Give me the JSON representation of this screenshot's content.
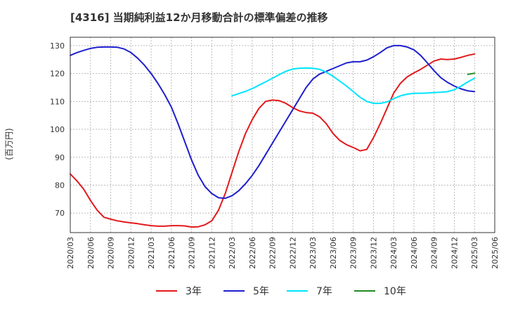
{
  "chart_data": {
    "type": "line",
    "title": "[4316]  当期純利益12か月移動合計の標準偏差の推移",
    "ylabel": "(百万円)",
    "xlabel": "",
    "ylim": [
      63,
      133
    ],
    "yticks": [
      70,
      80,
      90,
      100,
      110,
      120,
      130
    ],
    "xticks": [
      "2020/03",
      "2020/06",
      "2020/09",
      "2020/12",
      "2021/03",
      "2021/06",
      "2021/09",
      "2021/12",
      "2022/03",
      "2022/06",
      "2022/09",
      "2022/12",
      "2023/03",
      "2023/06",
      "2023/09",
      "2023/12",
      "2024/03",
      "2024/06",
      "2024/09",
      "2024/12",
      "2025/03",
      "2025/06"
    ],
    "grid": true,
    "legend_position": "bottom",
    "series": [
      {
        "name": "3年",
        "color": "#e31a1c",
        "x": [
          "2020/03",
          "2020/04",
          "2020/05",
          "2020/06",
          "2020/07",
          "2020/08",
          "2020/09",
          "2020/10",
          "2020/11",
          "2020/12",
          "2021/01",
          "2021/02",
          "2021/03",
          "2021/04",
          "2021/05",
          "2021/06",
          "2021/07",
          "2021/08",
          "2021/09",
          "2021/10",
          "2021/11",
          "2021/12",
          "2022/01",
          "2022/02",
          "2022/03",
          "2022/04",
          "2022/05",
          "2022/06",
          "2022/07",
          "2022/08",
          "2022/09",
          "2022/10",
          "2022/11",
          "2022/12",
          "2023/01",
          "2023/02",
          "2023/03",
          "2023/04",
          "2023/05",
          "2023/06",
          "2023/07",
          "2023/08",
          "2023/09",
          "2023/10",
          "2023/11",
          "2023/12",
          "2024/01",
          "2024/02",
          "2024/03",
          "2024/04",
          "2024/05",
          "2024/06",
          "2024/07",
          "2024/08",
          "2024/09",
          "2024/10",
          "2024/11",
          "2024/12",
          "2025/01",
          "2025/02",
          "2025/03"
        ],
        "values": [
          84.0,
          81.5,
          78.5,
          74.5,
          71.0,
          68.5,
          67.8,
          67.2,
          66.8,
          66.5,
          66.2,
          65.8,
          65.5,
          65.3,
          65.3,
          65.5,
          65.5,
          65.4,
          65.0,
          65.1,
          65.8,
          67.2,
          71.0,
          77.0,
          84.5,
          92.0,
          98.5,
          103.5,
          107.5,
          110.0,
          110.5,
          110.3,
          109.3,
          107.8,
          106.6,
          106.0,
          105.8,
          104.5,
          102.0,
          98.5,
          96.0,
          94.5,
          93.5,
          92.3,
          92.8,
          97.0,
          102.0,
          107.5,
          113.0,
          116.5,
          118.8,
          120.2,
          121.5,
          123.0,
          124.5,
          125.2,
          125.0,
          125.2,
          125.8,
          126.5,
          127.0
        ]
      },
      {
        "name": "5年",
        "color": "#1f1fcf",
        "x": [
          "2020/03",
          "2020/04",
          "2020/05",
          "2020/06",
          "2020/07",
          "2020/08",
          "2020/09",
          "2020/10",
          "2020/11",
          "2020/12",
          "2021/01",
          "2021/02",
          "2021/03",
          "2021/04",
          "2021/05",
          "2021/06",
          "2021/07",
          "2021/08",
          "2021/09",
          "2021/10",
          "2021/11",
          "2021/12",
          "2022/01",
          "2022/02",
          "2022/03",
          "2022/04",
          "2022/05",
          "2022/06",
          "2022/07",
          "2022/08",
          "2022/09",
          "2022/10",
          "2022/11",
          "2022/12",
          "2023/01",
          "2023/02",
          "2023/03",
          "2023/04",
          "2023/05",
          "2023/06",
          "2023/07",
          "2023/08",
          "2023/09",
          "2023/10",
          "2023/11",
          "2023/12",
          "2024/01",
          "2024/02",
          "2024/03",
          "2024/04",
          "2024/05",
          "2024/06",
          "2024/07",
          "2024/08",
          "2024/09",
          "2024/10",
          "2024/11",
          "2024/12",
          "2025/01",
          "2025/02",
          "2025/03"
        ],
        "values": [
          126.5,
          127.5,
          128.3,
          129.0,
          129.4,
          129.5,
          129.5,
          129.4,
          128.8,
          127.5,
          125.5,
          123.0,
          120.0,
          116.5,
          112.5,
          108.0,
          102.0,
          95.5,
          89.0,
          83.5,
          79.5,
          77.0,
          75.5,
          75.3,
          76.2,
          78.0,
          80.5,
          83.5,
          87.0,
          91.0,
          95.0,
          99.0,
          103.0,
          107.0,
          111.0,
          115.0,
          118.0,
          119.8,
          120.8,
          121.8,
          122.8,
          123.8,
          124.2,
          124.2,
          124.8,
          126.0,
          127.5,
          129.2,
          130.0,
          130.0,
          129.5,
          128.5,
          126.5,
          123.8,
          121.0,
          118.5,
          116.8,
          115.5,
          114.5,
          113.8,
          113.5
        ]
      },
      {
        "name": "7年",
        "color": "#00e5ff",
        "x": [
          "2022/03",
          "2022/04",
          "2022/05",
          "2022/06",
          "2022/07",
          "2022/08",
          "2022/09",
          "2022/10",
          "2022/11",
          "2022/12",
          "2023/01",
          "2023/02",
          "2023/03",
          "2023/04",
          "2023/05",
          "2023/06",
          "2023/07",
          "2023/08",
          "2023/09",
          "2023/10",
          "2023/11",
          "2023/12",
          "2024/01",
          "2024/02",
          "2024/03",
          "2024/04",
          "2024/05",
          "2024/06",
          "2024/07",
          "2024/08",
          "2024/09",
          "2024/10",
          "2024/11",
          "2024/12",
          "2025/01",
          "2025/02",
          "2025/03"
        ],
        "values": [
          112.0,
          112.8,
          113.6,
          114.6,
          115.8,
          117.0,
          118.3,
          119.6,
          120.8,
          121.6,
          121.9,
          122.0,
          121.9,
          121.5,
          120.5,
          119.0,
          117.3,
          115.5,
          113.5,
          111.5,
          110.0,
          109.3,
          109.3,
          109.8,
          111.0,
          112.0,
          112.6,
          112.9,
          112.9,
          113.0,
          113.2,
          113.3,
          113.5,
          114.2,
          115.5,
          117.0,
          118.3
        ]
      },
      {
        "name": "10年",
        "color": "#228b22",
        "x": [
          "2025/02",
          "2025/03"
        ],
        "values": [
          119.7,
          120.1
        ]
      }
    ]
  }
}
